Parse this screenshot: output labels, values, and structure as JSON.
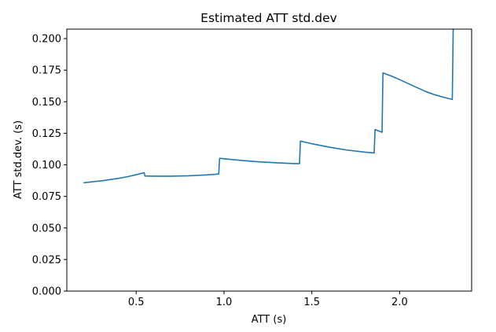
{
  "chart_data": {
    "type": "line",
    "title": "Estimated ATT std.dev",
    "xlabel": "ATT (s)",
    "ylabel": "ATT std.dev. (s)",
    "xlim": [
      0.105,
      2.41
    ],
    "ylim": [
      0.0,
      0.2075
    ],
    "xticks": [
      0.5,
      1.0,
      1.5,
      2.0
    ],
    "xtick_labels": [
      "0.5",
      "1.0",
      "1.5",
      "2.0"
    ],
    "yticks": [
      0.0,
      0.025,
      0.05,
      0.075,
      0.1,
      0.125,
      0.15,
      0.175,
      0.2
    ],
    "ytick_labels": [
      "0.000",
      "0.025",
      "0.050",
      "0.075",
      "0.100",
      "0.125",
      "0.150",
      "0.175",
      "0.200"
    ],
    "grid": false,
    "legend": "none",
    "colors": {
      "line": "#1f77b4",
      "axes": "#000000",
      "background": "#ffffff"
    },
    "series": [
      {
        "x": [
          0.2,
          0.3,
          0.4,
          0.45,
          0.5,
          0.545,
          0.55,
          0.6,
          0.7,
          0.8,
          0.9,
          0.97,
          0.975,
          1.0,
          1.1,
          1.2,
          1.3,
          1.4,
          1.43,
          1.435,
          1.5,
          1.6,
          1.7,
          1.8,
          1.855,
          1.86,
          1.9,
          1.905,
          1.95,
          2.0,
          2.05,
          2.1,
          2.15,
          2.2,
          2.25,
          2.3,
          2.305
        ],
        "y": [
          0.0858,
          0.0873,
          0.0893,
          0.0906,
          0.0922,
          0.0938,
          0.0912,
          0.091,
          0.091,
          0.0913,
          0.092,
          0.0927,
          0.1052,
          0.1048,
          0.1035,
          0.1024,
          0.1016,
          0.101,
          0.101,
          0.1188,
          0.1167,
          0.114,
          0.1117,
          0.1101,
          0.1094,
          0.128,
          0.1258,
          0.1728,
          0.1705,
          0.1675,
          0.1643,
          0.1611,
          0.158,
          0.1555,
          0.1535,
          0.1518,
          0.2075
        ]
      }
    ]
  }
}
